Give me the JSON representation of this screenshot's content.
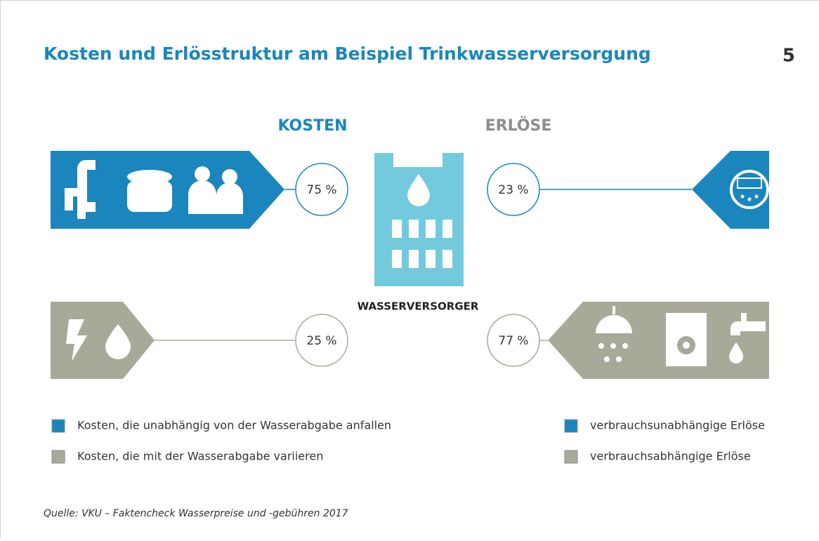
{
  "header": {
    "title": "Kosten und Erlösstruktur am Beispiel Trinkwasserversorgung",
    "page_number": "5"
  },
  "columns": {
    "costs": "KOSTEN",
    "revenues": "ERLÖSE"
  },
  "center": {
    "label": "WASSERVERSORGER"
  },
  "shares": {
    "fixed_costs": "75 %",
    "fixed_revenues": "23 %",
    "variable_costs": "25 %",
    "variable_revenues": "77 %"
  },
  "legend": {
    "fixed_costs": "Kosten, die unabhängig von der Wasserabgabe anfallen",
    "variable_costs": "Kosten, die mit der Wasserabgabe variieren",
    "fixed_revenues": "verbrauchsunabhängige Erlöse",
    "variable_revenues": "verbrauchsabhängige Erlöse"
  },
  "source": "Quelle: VKU – Faktencheck Wasserpreise und -gebühren 2017"
}
